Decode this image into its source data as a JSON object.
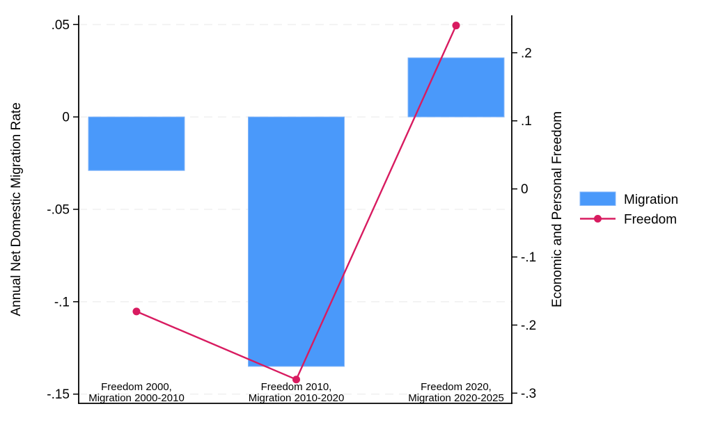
{
  "chart_data": {
    "type": "bar",
    "subtype": "dual-axis bar plus line",
    "background": "#ffffff",
    "axis_color": "#000000",
    "categories": [
      {
        "line1": "Freedom 2000,",
        "line2": "Migration 2000-2010"
      },
      {
        "line1": "Freedom 2010,",
        "line2": "Migration 2010-2020"
      },
      {
        "line1": "Freedom 2020,",
        "line2": "Migration 2020-2025"
      }
    ],
    "series": [
      {
        "name": "Migration",
        "kind": "bar",
        "axis": "left",
        "color": "#4a99fa",
        "edge_color": "#85b7f9",
        "values": [
          -0.029,
          -0.135,
          0.032
        ]
      },
      {
        "name": "Freedom",
        "kind": "line",
        "axis": "right",
        "color": "#d81b60",
        "values": [
          -0.18,
          -0.28,
          0.24
        ]
      }
    ],
    "left_axis": {
      "title": "Annual Net Domestic Migration Rate",
      "tick_labels": [
        ".05",
        "0",
        "-.05",
        "-.1",
        "-.15"
      ],
      "tick_values": [
        0.05,
        0,
        -0.05,
        -0.1,
        -0.15
      ],
      "range": [
        -0.155,
        0.055
      ]
    },
    "right_axis": {
      "title": "Economic and Personal Freedom",
      "tick_labels": [
        ".2",
        ".1",
        "0",
        "-.1",
        "-.2",
        "-.3"
      ],
      "tick_values": [
        0.2,
        0.1,
        0,
        -0.1,
        -0.2,
        -0.3
      ],
      "range": [
        -0.315,
        0.255
      ]
    },
    "legend": {
      "position": "right-outside",
      "items": [
        {
          "label": "Migration",
          "swatch": "bar"
        },
        {
          "label": "Freedom",
          "swatch": "line-marker"
        }
      ]
    },
    "grid": {
      "lines": "left-axis-ticks",
      "style": "dashed",
      "color": "#f0f0f0"
    }
  }
}
